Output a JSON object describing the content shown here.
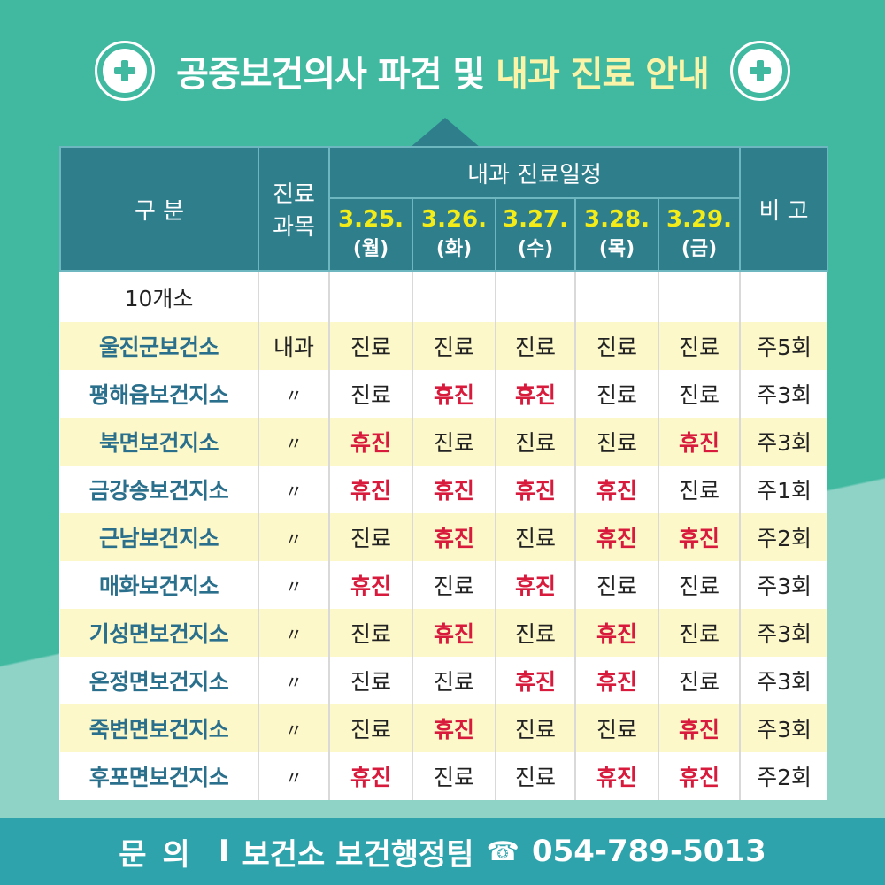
{
  "title": {
    "main": "공중보건의사 파견 및",
    "accent": "내과 진료 안내"
  },
  "table": {
    "headers": {
      "category": "구  분",
      "department": [
        "진료",
        "과목"
      ],
      "schedule": "내과 진료일정",
      "note": "비 고",
      "dates": [
        {
          "date": "3.25.",
          "day": "(월)"
        },
        {
          "date": "3.26.",
          "day": "(화)"
        },
        {
          "date": "3.27.",
          "day": "(수)"
        },
        {
          "date": "3.28.",
          "day": "(목)"
        },
        {
          "date": "3.29.",
          "day": "(금)"
        }
      ]
    },
    "summary": "10개소",
    "rows": [
      {
        "name": "울진군보건소",
        "dept": "내과",
        "days": [
          "진료",
          "진료",
          "진료",
          "진료",
          "진료"
        ],
        "note": "주5회"
      },
      {
        "name": "평해읍보건지소",
        "dept": "〃",
        "days": [
          "진료",
          "휴진",
          "휴진",
          "진료",
          "진료"
        ],
        "note": "주3회"
      },
      {
        "name": "북면보건지소",
        "dept": "〃",
        "days": [
          "휴진",
          "진료",
          "진료",
          "진료",
          "휴진"
        ],
        "note": "주3회"
      },
      {
        "name": "금강송보건지소",
        "dept": "〃",
        "days": [
          "휴진",
          "휴진",
          "휴진",
          "휴진",
          "진료"
        ],
        "note": "주1회"
      },
      {
        "name": "근남보건지소",
        "dept": "〃",
        "days": [
          "진료",
          "휴진",
          "진료",
          "휴진",
          "휴진"
        ],
        "note": "주2회"
      },
      {
        "name": "매화보건지소",
        "dept": "〃",
        "days": [
          "휴진",
          "진료",
          "휴진",
          "진료",
          "진료"
        ],
        "note": "주3회"
      },
      {
        "name": "기성면보건지소",
        "dept": "〃",
        "days": [
          "진료",
          "휴진",
          "진료",
          "휴진",
          "진료"
        ],
        "note": "주3회"
      },
      {
        "name": "온정면보건지소",
        "dept": "〃",
        "days": [
          "진료",
          "진료",
          "휴진",
          "휴진",
          "진료"
        ],
        "note": "주3회"
      },
      {
        "name": "죽변면보건지소",
        "dept": "〃",
        "days": [
          "진료",
          "휴진",
          "진료",
          "진료",
          "휴진"
        ],
        "note": "주3회"
      },
      {
        "name": "후포면보건지소",
        "dept": "〃",
        "days": [
          "휴진",
          "진료",
          "진료",
          "휴진",
          "휴진"
        ],
        "note": "주2회"
      }
    ]
  },
  "footer": {
    "label": "문의",
    "separator": "I",
    "team": "보건소 보건행정팀",
    "phone_icon": "☎",
    "phone": "054-789-5013"
  },
  "colors": {
    "background": "#40b9a0",
    "header_fill": "#2f7e8c",
    "date_text": "#f3ec19",
    "closed_text": "#d81b3d",
    "name_text": "#2a6f8c",
    "alt_row": "#fdf8c9",
    "footer_fill": "#2fa3ab",
    "title_accent": "#fbf4a8"
  },
  "icons": {
    "left": "plus-circle-icon",
    "right": "plus-circle-icon",
    "phone": "telephone-icon"
  }
}
